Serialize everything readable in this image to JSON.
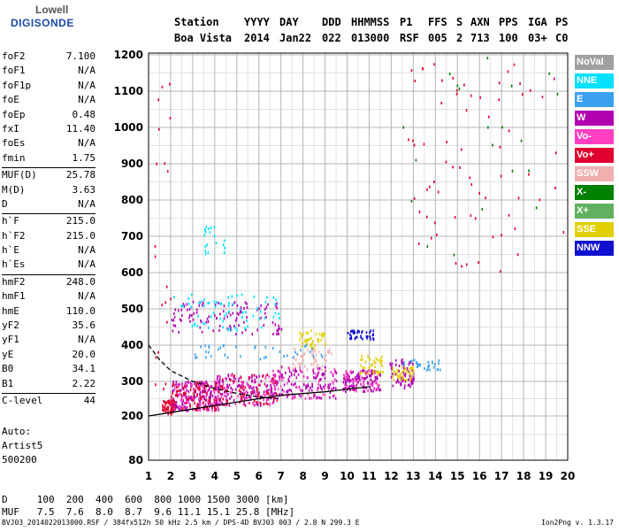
{
  "logo": {
    "line1": "Lowell",
    "line2": "DIGISONDE"
  },
  "header": {
    "labels": [
      "Station",
      "YYYY",
      "DAY",
      "DDD",
      "HHMMSS",
      "P1",
      "FFS",
      "S",
      "AXN",
      "PPS",
      "IGA",
      "PS"
    ],
    "values": [
      "Boa Vista",
      "2014",
      "Jan22",
      "022",
      "013000",
      "RSF",
      "005",
      "2",
      "713",
      "100",
      "03+",
      "C0"
    ]
  },
  "params": [
    [
      {
        "k": "foF2",
        "v": "7.100"
      },
      {
        "k": "foF1",
        "v": "N/A"
      },
      {
        "k": "foF1p",
        "v": "N/A"
      },
      {
        "k": "foE",
        "v": "N/A"
      },
      {
        "k": "foEp",
        "v": "0.48"
      },
      {
        "k": "fxI",
        "v": "11.40"
      },
      {
        "k": "foEs",
        "v": "N/A"
      },
      {
        "k": "fmin",
        "v": "1.75"
      }
    ],
    [
      {
        "k": "MUF(D)",
        "v": "25.78"
      },
      {
        "k": "M(D)",
        "v": "3.63"
      },
      {
        "k": "D",
        "v": "N/A"
      }
    ],
    [
      {
        "k": "h`F",
        "v": "215.0"
      },
      {
        "k": "h`F2",
        "v": "215.0"
      },
      {
        "k": "h`E",
        "v": "N/A"
      },
      {
        "k": "h`Es",
        "v": "N/A"
      }
    ],
    [
      {
        "k": "hmF2",
        "v": "248.0"
      },
      {
        "k": "hmF1",
        "v": "N/A"
      },
      {
        "k": "hmE",
        "v": "110.0"
      },
      {
        "k": "yF2",
        "v": "35.6"
      },
      {
        "k": "yF1",
        "v": "N/A"
      },
      {
        "k": "yE",
        "v": "20.0"
      },
      {
        "k": "B0",
        "v": "34.1"
      },
      {
        "k": "B1",
        "v": "2.22"
      }
    ],
    [
      {
        "k": "C-level",
        "v": "44"
      }
    ]
  ],
  "auto": [
    "Auto:",
    "Artist5",
    "500200"
  ],
  "conversion": {
    "d_label": "D",
    "d_values": "100  200  400  600  800 1000 1500 3000 [km]",
    "muf_label": "MUF",
    "muf_values": "7.5  7.6  8.0  8.7  9.6 11.1 15.1 25.8 [MHz]"
  },
  "footer": "BVJ03_2014022013000.RSF / 384fx512h 50 kHz 2.5 km / DPS-4D BVJ03 003 / 2.8 N 299.3 E",
  "version": "Ion2Png v. 1.3.17",
  "chart_data": {
    "type": "scatter",
    "xlim": [
      1,
      20
    ],
    "ylim": [
      80,
      1200
    ],
    "x_ticks": [
      1,
      2,
      3,
      4,
      5,
      6,
      7,
      8,
      9,
      10,
      11,
      12,
      13,
      14,
      15,
      16,
      17,
      18,
      19,
      20
    ],
    "y_ticks": [
      80,
      200,
      300,
      400,
      500,
      600,
      700,
      800,
      900,
      1000,
      1100,
      1200
    ],
    "grid": true,
    "legend_position": "right",
    "legend": [
      {
        "name": "NoVal",
        "color": "#a0a0a0"
      },
      {
        "name": "NNE",
        "color": "#00e0ff"
      },
      {
        "name": "E",
        "color": "#3aa0f0"
      },
      {
        "name": "W",
        "color": "#b000b0"
      },
      {
        "name": "Vo-",
        "color": "#ff40c0"
      },
      {
        "name": "Vo+",
        "color": "#e00030"
      },
      {
        "name": "SSW",
        "color": "#f0b0b0"
      },
      {
        "name": "X-",
        "color": "#008000"
      },
      {
        "name": "X+",
        "color": "#60b060"
      },
      {
        "name": "SSE",
        "color": "#e0d000"
      },
      {
        "name": "NNW",
        "color": "#1010d0"
      }
    ],
    "echo_clusters": [
      {
        "x": [
          1.6,
          2.2
        ],
        "y": [
          205,
          245
        ],
        "color": "#e00030",
        "n": 60
      },
      {
        "x": [
          2.0,
          4.2
        ],
        "y": [
          215,
          300
        ],
        "color": "#b000b0",
        "n": 160
      },
      {
        "x": [
          2.0,
          4.2
        ],
        "y": [
          215,
          300
        ],
        "color": "#ff40c0",
        "n": 90
      },
      {
        "x": [
          2.0,
          4.2
        ],
        "y": [
          215,
          300
        ],
        "color": "#e00030",
        "n": 80
      },
      {
        "x": [
          4.0,
          6.8
        ],
        "y": [
          230,
          320
        ],
        "color": "#b000b0",
        "n": 150
      },
      {
        "x": [
          4.0,
          6.8
        ],
        "y": [
          230,
          320
        ],
        "color": "#ff40c0",
        "n": 90
      },
      {
        "x": [
          4.0,
          6.8
        ],
        "y": [
          230,
          320
        ],
        "color": "#e00030",
        "n": 60
      },
      {
        "x": [
          6.5,
          9.5
        ],
        "y": [
          250,
          340
        ],
        "color": "#b000b0",
        "n": 120
      },
      {
        "x": [
          6.5,
          9.5
        ],
        "y": [
          250,
          340
        ],
        "color": "#ff40c0",
        "n": 60
      },
      {
        "x": [
          7.5,
          9.3
        ],
        "y": [
          330,
          390
        ],
        "color": "#f0b0b0",
        "n": 50
      },
      {
        "x": [
          7.8,
          9.0
        ],
        "y": [
          390,
          440
        ],
        "color": "#e0d000",
        "n": 40
      },
      {
        "x": [
          9.8,
          11.5
        ],
        "y": [
          270,
          330
        ],
        "color": "#b000b0",
        "n": 110
      },
      {
        "x": [
          9.8,
          11.5
        ],
        "y": [
          270,
          330
        ],
        "color": "#ff40c0",
        "n": 50
      },
      {
        "x": [
          10.5,
          11.6
        ],
        "y": [
          320,
          370
        ],
        "color": "#e0d000",
        "n": 40
      },
      {
        "x": [
          10.0,
          11.2
        ],
        "y": [
          415,
          440
        ],
        "color": "#1010d0",
        "n": 35
      },
      {
        "x": [
          11.9,
          13.0
        ],
        "y": [
          280,
          360
        ],
        "color": "#b000b0",
        "n": 70
      },
      {
        "x": [
          12.0,
          13.0
        ],
        "y": [
          300,
          340
        ],
        "color": "#e0d000",
        "n": 40
      },
      {
        "x": [
          12.5,
          14.2
        ],
        "y": [
          330,
          360
        ],
        "color": "#3aa0f0",
        "n": 30
      },
      {
        "x": [
          2.0,
          7.0
        ],
        "y": [
          430,
          520
        ],
        "color": "#b000b0",
        "n": 110
      },
      {
        "x": [
          2.0,
          7.0
        ],
        "y": [
          440,
          540
        ],
        "color": "#00e0ff",
        "n": 70
      },
      {
        "x": [
          3.5,
          4.5
        ],
        "y": [
          650,
          730
        ],
        "color": "#00e0ff",
        "n": 20
      },
      {
        "x": [
          2.5,
          9.0
        ],
        "y": [
          360,
          400
        ],
        "color": "#3aa0f0",
        "n": 40
      },
      {
        "x": [
          12.5,
          19.8
        ],
        "y": [
          600,
          1195
        ],
        "color": "#e00030",
        "n": 70
      },
      {
        "x": [
          12.5,
          19.8
        ],
        "y": [
          600,
          1195
        ],
        "color": "#008000",
        "n": 20
      },
      {
        "x": [
          1.2,
          2.0
        ],
        "y": [
          250,
          1150
        ],
        "color": "#e00030",
        "n": 20
      }
    ],
    "trace_lines": [
      {
        "style": "solid",
        "color": "#000000",
        "x": [
          1.0,
          3.0,
          5.0,
          7.0,
          9.0,
          11.0
        ],
        "y": [
          200,
          220,
          240,
          260,
          270,
          285
        ]
      },
      {
        "style": "dashed",
        "color": "#000000",
        "x": [
          1.0,
          1.5,
          2.0,
          3.0,
          4.0,
          5.0,
          6.0,
          7.0
        ],
        "y": [
          400,
          360,
          330,
          300,
          280,
          265,
          255,
          250
        ]
      }
    ]
  }
}
